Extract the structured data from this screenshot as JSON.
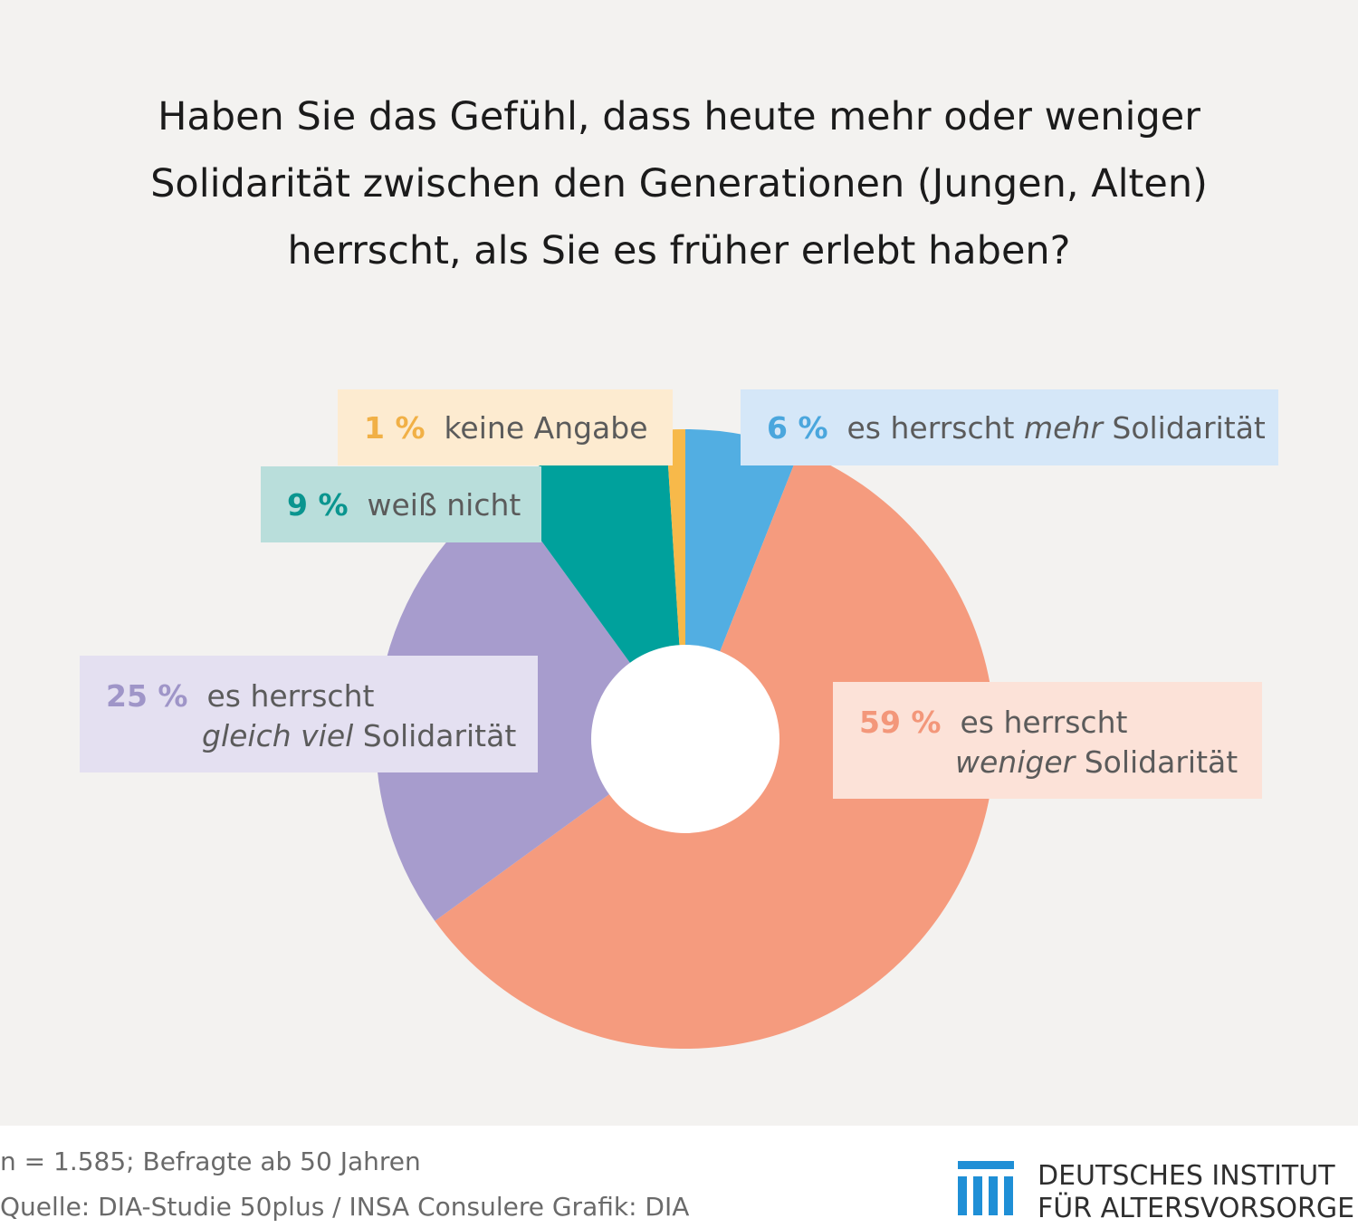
{
  "title_lines": [
    "Haben Sie das Gefühl, dass heute mehr oder weniger",
    "Solidarität zwischen den Generationen (Jungen, Alten)",
    "herrscht, als Sie es früher erlebt haben?"
  ],
  "chart_data": {
    "type": "pie",
    "donut": true,
    "title": "Haben Sie das Gefühl, dass heute mehr oder weniger Solidarität zwischen den Generationen (Jungen, Alten) herrscht, als Sie es früher erlebt haben?",
    "slices": [
      {
        "label": "es herrscht mehr Solidarität",
        "value": 6,
        "color": "#52aee2"
      },
      {
        "label": "es herrscht weniger Solidarität",
        "value": 59,
        "color": "#f59b7e"
      },
      {
        "label": "es herrscht gleich viel Solidarität",
        "value": 25,
        "color": "#a79ccd"
      },
      {
        "label": "weiß nicht",
        "value": 9,
        "color": "#00a19c"
      },
      {
        "label": "keine Angabe",
        "value": 1,
        "color": "#f7b94a"
      }
    ]
  },
  "labels": {
    "mehr": {
      "pct": "6 %",
      "pre": "es herrscht ",
      "em": "mehr",
      "post": " Solidarität",
      "bg": "#d5e7f8",
      "pct_color": "#4aa6dd"
    },
    "weniger": {
      "pct": "59 %",
      "line1": "es herrscht",
      "em": "weniger",
      "post": " Solidarität",
      "bg": "#fce2d8",
      "pct_color": "#f3977a"
    },
    "gleich": {
      "pct": "25 %",
      "line1": "es herrscht",
      "em": "gleich viel",
      "post": " Solidarität",
      "bg": "#e4e0f1",
      "pct_color": "#9f95c8"
    },
    "weiss": {
      "pct": "9 %",
      "text": "weiß nicht",
      "bg": "#b9dedb",
      "pct_color": "#0a958f"
    },
    "keine": {
      "pct": "1 %",
      "text": "keine Angabe",
      "bg": "#fdebd0",
      "pct_color": "#f1b046"
    }
  },
  "footer": {
    "line1": "n = 1.585; Befragte ab 50 Jahren",
    "line2": "Quelle: DIA-Studie 50plus / INSA Consulere  Grafik: DIA"
  },
  "logo": {
    "line1": "DEUTSCHES INSTITUT",
    "line2": "FÜR ALTERSVORSORGE",
    "color": "#1f8fd6"
  }
}
